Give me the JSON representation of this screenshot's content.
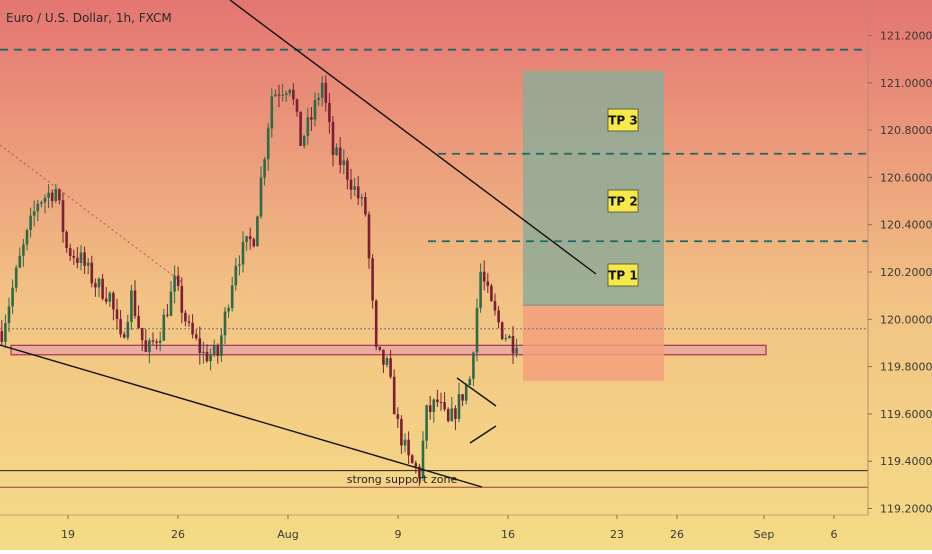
{
  "chart_data": {
    "type": "candlestick",
    "title": "Euro / U.S. Dollar, 1h, FXCM",
    "background_gradient": [
      "#e47572",
      "#f2c384",
      "#f5dc86"
    ],
    "y_axis": {
      "ticks": [
        "121.20000",
        "121.00000",
        "120.80000",
        "120.60000",
        "120.40000",
        "120.20000",
        "120.00000",
        "119.80000",
        "119.60000",
        "119.40000",
        "119.20000"
      ],
      "range": [
        119.18,
        121.32
      ]
    },
    "x_axis": {
      "ticks": [
        "19",
        "26",
        "Aug",
        "9",
        "16",
        "23",
        "26",
        "Sep",
        "6"
      ]
    },
    "last_price": 119.96,
    "price_path": [
      [
        0,
        119.95
      ],
      [
        5,
        120.25
      ],
      [
        10,
        120.5
      ],
      [
        15,
        120.55
      ],
      [
        18,
        120.3
      ],
      [
        22,
        120.25
      ],
      [
        26,
        120.15
      ],
      [
        30,
        120.1
      ],
      [
        33,
        119.9
      ],
      [
        36,
        120.1
      ],
      [
        40,
        119.85
      ],
      [
        44,
        119.95
      ],
      [
        48,
        120.15
      ],
      [
        52,
        119.95
      ],
      [
        56,
        119.85
      ],
      [
        60,
        119.85
      ],
      [
        65,
        120.25
      ],
      [
        70,
        120.35
      ],
      [
        75,
        120.95
      ],
      [
        80,
        121.0
      ],
      [
        83,
        120.75
      ],
      [
        86,
        120.85
      ],
      [
        89,
        121.0
      ],
      [
        92,
        120.7
      ],
      [
        95,
        120.65
      ],
      [
        98,
        120.55
      ],
      [
        101,
        120.45
      ],
      [
        104,
        119.85
      ],
      [
        107,
        119.8
      ],
      [
        110,
        119.55
      ],
      [
        113,
        119.4
      ],
      [
        116,
        119.35
      ],
      [
        118,
        119.6
      ],
      [
        121,
        119.65
      ],
      [
        124,
        119.55
      ],
      [
        127,
        119.65
      ],
      [
        130,
        119.75
      ],
      [
        133,
        120.2
      ],
      [
        136,
        120.05
      ],
      [
        139,
        119.95
      ],
      [
        142,
        119.9
      ],
      [
        143,
        119.92
      ]
    ],
    "lines": [
      {
        "name": "upper-trendline",
        "color": "#111111",
        "style": "solid",
        "points": [
          [
            80,
            121.35
          ],
          [
            185,
            120.22
          ]
        ]
      },
      {
        "name": "lower-trendline",
        "color": "#111111",
        "style": "solid",
        "points": [
          [
            0,
            119.88
          ],
          [
            128,
            119.29
          ]
        ]
      },
      {
        "name": "dotted-trendline",
        "color": "#b4525c",
        "style": "dotted",
        "points": [
          [
            0,
            120.85
          ],
          [
            50,
            120.1
          ]
        ]
      },
      {
        "name": "pennant-upper",
        "color": "#111111",
        "style": "solid",
        "points": [
          [
            121,
            119.74
          ],
          [
            131,
            119.63
          ]
        ]
      },
      {
        "name": "pennant-lower",
        "color": "#111111",
        "style": "solid",
        "points": [
          [
            124,
            119.5
          ],
          [
            131,
            119.62
          ]
        ]
      }
    ],
    "levels": [
      {
        "name": "top-dashed",
        "price": 121.14,
        "style": "dashed",
        "color": "#1d6b66"
      },
      {
        "name": "tp3-dashed",
        "price": 120.7,
        "style": "dashed",
        "color": "#1d6b66",
        "from": 146
      },
      {
        "name": "tp2-dashed",
        "price": 120.33,
        "style": "dashed",
        "color": "#1d6b66",
        "from": 142
      },
      {
        "name": "support-upper",
        "price": 119.36,
        "style": "solid",
        "color": "#222222"
      },
      {
        "name": "support-lower",
        "price": 119.29,
        "style": "solid",
        "color": "#9b3a50"
      },
      {
        "name": "last-price-line",
        "price": 119.96,
        "style": "dotted",
        "color": "#777777"
      }
    ],
    "zones": [
      {
        "name": "horizontal-zone",
        "from_x": 0,
        "to_x": 260,
        "price_low": 119.85,
        "price_high": 119.89,
        "color": "#e6a3a8",
        "border": "#a2364e"
      }
    ],
    "position": {
      "from_x": 175,
      "to_x": 225,
      "target_price": 121.05,
      "entry_price": 120.06,
      "stop_price": 119.74,
      "profit_color": "#8eac98",
      "loss_color": "#f3a07b"
    },
    "annotations": [
      {
        "name": "tp1-label",
        "text": "TP 1",
        "x": 211,
        "price": 120.2
      },
      {
        "name": "tp2-label",
        "text": "TP 2",
        "x": 211,
        "price": 120.5
      },
      {
        "name": "tp3-label",
        "text": "TP 3",
        "x": 211,
        "price": 120.82
      },
      {
        "name": "support-zone-label",
        "text": "strong support zone",
        "x": 132,
        "price": 119.325
      }
    ]
  }
}
